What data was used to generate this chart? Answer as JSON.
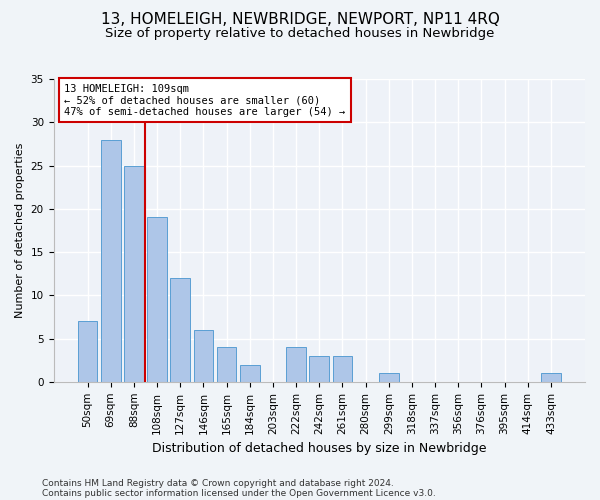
{
  "title": "13, HOMELEIGH, NEWBRIDGE, NEWPORT, NP11 4RQ",
  "subtitle": "Size of property relative to detached houses in Newbridge",
  "xlabel": "Distribution of detached houses by size in Newbridge",
  "ylabel": "Number of detached properties",
  "categories": [
    "50sqm",
    "69sqm",
    "88sqm",
    "108sqm",
    "127sqm",
    "146sqm",
    "165sqm",
    "184sqm",
    "203sqm",
    "222sqm",
    "242sqm",
    "261sqm",
    "280sqm",
    "299sqm",
    "318sqm",
    "337sqm",
    "356sqm",
    "376sqm",
    "395sqm",
    "414sqm",
    "433sqm"
  ],
  "values": [
    7,
    28,
    25,
    19,
    12,
    6,
    4,
    2,
    0,
    4,
    3,
    3,
    0,
    1,
    0,
    0,
    0,
    0,
    0,
    0,
    1
  ],
  "bar_color": "#aec6e8",
  "bar_edge_color": "#5a9fd4",
  "vline_color": "#cc0000",
  "annotation_text": "13 HOMELEIGH: 109sqm\n← 52% of detached houses are smaller (60)\n47% of semi-detached houses are larger (54) →",
  "annotation_box_color": "#ffffff",
  "annotation_box_edge": "#cc0000",
  "ylim": [
    0,
    35
  ],
  "yticks": [
    0,
    5,
    10,
    15,
    20,
    25,
    30,
    35
  ],
  "background_color": "#eef2f8",
  "grid_color": "#ffffff",
  "footer1": "Contains HM Land Registry data © Crown copyright and database right 2024.",
  "footer2": "Contains public sector information licensed under the Open Government Licence v3.0.",
  "title_fontsize": 11,
  "subtitle_fontsize": 9.5,
  "xlabel_fontsize": 9,
  "ylabel_fontsize": 8,
  "tick_fontsize": 7.5,
  "footer_fontsize": 6.5,
  "annotation_fontsize": 7.5
}
